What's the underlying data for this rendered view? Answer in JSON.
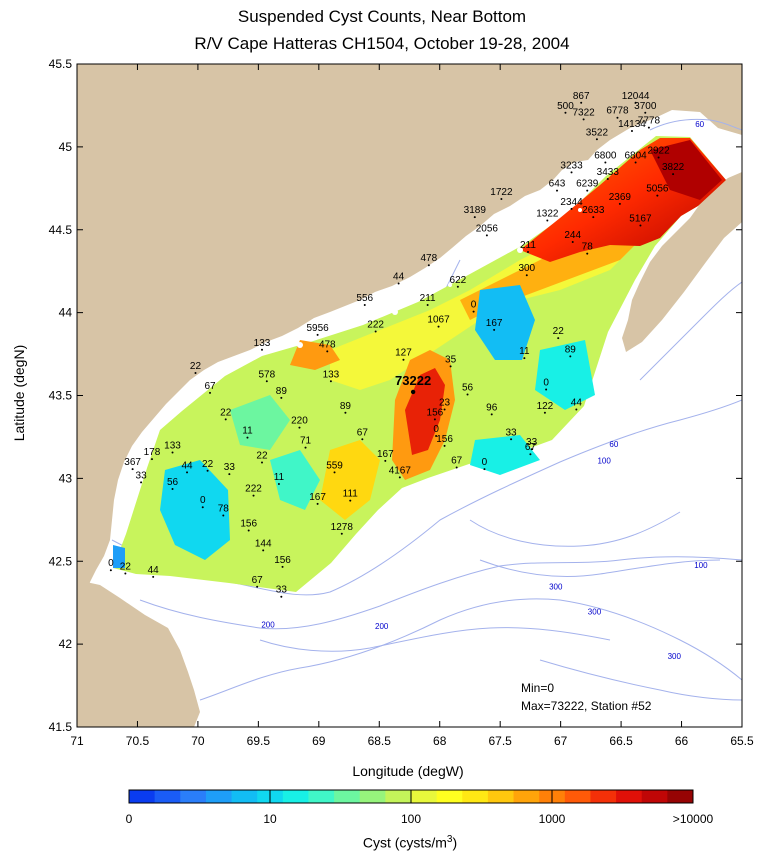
{
  "title_line1": "Suspended Cyst Counts, Near Bottom",
  "title_line2": "R/V Cape Hatteras CH1504, October 19-28, 2004",
  "xlabel": "Longitude (degW)",
  "ylabel": "Latitude (degN)",
  "colorbar": {
    "title": "Cyst (cysts/m",
    "title_sup": "3",
    "title_close": ")",
    "tick_labels": [
      "0",
      "10",
      "100",
      "1000",
      ">10000"
    ],
    "colors": [
      "#0a3cf0",
      "#1a5cf6",
      "#2a7efa",
      "#1e9ef8",
      "#12bdf4",
      "#10d8f0",
      "#18f0e6",
      "#40f6c8",
      "#6cf6a0",
      "#96f47c",
      "#c4f45a",
      "#e8f83c",
      "#ffff20",
      "#ffe814",
      "#ffc80e",
      "#ffa40a",
      "#ff8008",
      "#ff5a08",
      "#f43008",
      "#e01008",
      "#c00606",
      "#960404"
    ]
  },
  "stats": {
    "min": "Min=0",
    "max": "Max=73222, Station #52"
  },
  "colors": {
    "land": "#d7c4a6",
    "water": "#ffffff",
    "contour": "#a4b2ec",
    "depth_label": "#0000cc"
  },
  "chart_data": {
    "type": "contour-map",
    "xlim": [
      71,
      65.5
    ],
    "ylim": [
      41.5,
      45.5
    ],
    "x_ticks": [
      "71",
      "70.5",
      "70",
      "69.5",
      "69",
      "68.5",
      "68",
      "67.5",
      "67",
      "66.5",
      "66",
      "65.5"
    ],
    "y_ticks": [
      "41.5",
      "42",
      "42.5",
      "43",
      "43.5",
      "44",
      "44.5",
      "45",
      "45.5"
    ],
    "depth_contour_labels": [
      {
        "text": "60",
        "lon": 65.85,
        "lat": 45.12
      },
      {
        "text": "60",
        "lon": 66.56,
        "lat": 43.19
      },
      {
        "text": "100",
        "lon": 66.64,
        "lat": 43.09
      },
      {
        "text": "100",
        "lon": 65.84,
        "lat": 42.46
      },
      {
        "text": "300",
        "lon": 67.04,
        "lat": 42.33
      },
      {
        "text": "300",
        "lon": 66.72,
        "lat": 42.18
      },
      {
        "text": "300",
        "lon": 66.06,
        "lat": 41.91
      },
      {
        "text": "200",
        "lon": 69.42,
        "lat": 42.1
      },
      {
        "text": "200",
        "lon": 68.48,
        "lat": 42.09
      }
    ],
    "stations": [
      {
        "lon": 70.72,
        "lat": 42.47,
        "value": "0"
      },
      {
        "lon": 70.6,
        "lat": 42.45,
        "value": "22"
      },
      {
        "lon": 70.37,
        "lat": 42.43,
        "value": "44"
      },
      {
        "lon": 70.54,
        "lat": 43.08,
        "value": "367"
      },
      {
        "lon": 70.47,
        "lat": 43.0,
        "value": "33"
      },
      {
        "lon": 70.38,
        "lat": 43.14,
        "value": "178"
      },
      {
        "lon": 70.21,
        "lat": 43.18,
        "value": "133"
      },
      {
        "lon": 70.21,
        "lat": 42.96,
        "value": "56"
      },
      {
        "lon": 70.09,
        "lat": 43.06,
        "value": "44"
      },
      {
        "lon": 69.96,
        "lat": 42.85,
        "value": "0"
      },
      {
        "lon": 69.92,
        "lat": 43.07,
        "value": "22"
      },
      {
        "lon": 69.79,
        "lat": 42.8,
        "value": "78"
      },
      {
        "lon": 69.74,
        "lat": 43.05,
        "value": "33"
      },
      {
        "lon": 69.77,
        "lat": 43.38,
        "value": "22"
      },
      {
        "lon": 69.9,
        "lat": 43.54,
        "value": "67"
      },
      {
        "lon": 70.02,
        "lat": 43.66,
        "value": "22"
      },
      {
        "lon": 69.59,
        "lat": 43.27,
        "value": "11"
      },
      {
        "lon": 69.47,
        "lat": 43.12,
        "value": "22"
      },
      {
        "lon": 69.54,
        "lat": 42.92,
        "value": "222"
      },
      {
        "lon": 69.58,
        "lat": 42.71,
        "value": "156"
      },
      {
        "lon": 69.46,
        "lat": 42.59,
        "value": "144"
      },
      {
        "lon": 69.3,
        "lat": 42.49,
        "value": "156"
      },
      {
        "lon": 69.51,
        "lat": 42.37,
        "value": "67"
      },
      {
        "lon": 69.31,
        "lat": 42.31,
        "value": "33"
      },
      {
        "lon": 69.33,
        "lat": 42.99,
        "value": "11"
      },
      {
        "lon": 69.47,
        "lat": 43.8,
        "value": "133"
      },
      {
        "lon": 69.43,
        "lat": 43.61,
        "value": "578"
      },
      {
        "lon": 69.31,
        "lat": 43.51,
        "value": "89"
      },
      {
        "lon": 69.16,
        "lat": 43.33,
        "value": "220"
      },
      {
        "lon": 69.11,
        "lat": 43.21,
        "value": "71"
      },
      {
        "lon": 69.01,
        "lat": 43.89,
        "value": "5956"
      },
      {
        "lon": 68.93,
        "lat": 43.79,
        "value": "478"
      },
      {
        "lon": 68.9,
        "lat": 43.61,
        "value": "133"
      },
      {
        "lon": 68.78,
        "lat": 43.42,
        "value": "89"
      },
      {
        "lon": 68.64,
        "lat": 43.26,
        "value": "67"
      },
      {
        "lon": 68.87,
        "lat": 43.06,
        "value": "559"
      },
      {
        "lon": 68.74,
        "lat": 42.89,
        "value": "111"
      },
      {
        "lon": 69.01,
        "lat": 42.87,
        "value": "167"
      },
      {
        "lon": 68.81,
        "lat": 42.69,
        "value": "1278"
      },
      {
        "lon": 68.45,
        "lat": 43.13,
        "value": "167"
      },
      {
        "lon": 68.33,
        "lat": 43.03,
        "value": "4167"
      },
      {
        "lon": 68.22,
        "lat": 43.57,
        "value": "73222",
        "highlight": true
      },
      {
        "lon": 68.3,
        "lat": 43.74,
        "value": "127"
      },
      {
        "lon": 68.53,
        "lat": 43.91,
        "value": "222"
      },
      {
        "lon": 68.62,
        "lat": 44.07,
        "value": "556"
      },
      {
        "lon": 68.34,
        "lat": 44.2,
        "value": "44"
      },
      {
        "lon": 68.1,
        "lat": 44.07,
        "value": "211"
      },
      {
        "lon": 68.01,
        "lat": 43.94,
        "value": "1067"
      },
      {
        "lon": 67.91,
        "lat": 43.7,
        "value": "35"
      },
      {
        "lon": 67.96,
        "lat": 43.44,
        "value": "23"
      },
      {
        "lon": 68.04,
        "lat": 43.38,
        "value": "156"
      },
      {
        "lon": 68.03,
        "lat": 43.28,
        "value": "0"
      },
      {
        "lon": 67.96,
        "lat": 43.22,
        "value": "156"
      },
      {
        "lon": 67.86,
        "lat": 43.09,
        "value": "67"
      },
      {
        "lon": 67.63,
        "lat": 43.08,
        "value": "0"
      },
      {
        "lon": 67.77,
        "lat": 43.53,
        "value": "56"
      },
      {
        "lon": 67.57,
        "lat": 43.41,
        "value": "96"
      },
      {
        "lon": 67.41,
        "lat": 43.26,
        "value": "33"
      },
      {
        "lon": 67.24,
        "lat": 43.2,
        "value": "33"
      },
      {
        "lon": 67.25,
        "lat": 43.17,
        "value": "67"
      },
      {
        "lon": 67.13,
        "lat": 43.42,
        "value": "122"
      },
      {
        "lon": 66.87,
        "lat": 43.44,
        "value": "44"
      },
      {
        "lon": 67.3,
        "lat": 43.75,
        "value": "11"
      },
      {
        "lon": 67.12,
        "lat": 43.56,
        "value": "0"
      },
      {
        "lon": 67.02,
        "lat": 43.87,
        "value": "22"
      },
      {
        "lon": 66.92,
        "lat": 43.76,
        "value": "89"
      },
      {
        "lon": 67.55,
        "lat": 43.92,
        "value": "167"
      },
      {
        "lon": 67.72,
        "lat": 44.03,
        "value": "0"
      },
      {
        "lon": 67.85,
        "lat": 44.18,
        "value": "622"
      },
      {
        "lon": 68.09,
        "lat": 44.31,
        "value": "478"
      },
      {
        "lon": 67.27,
        "lat": 44.39,
        "value": "211"
      },
      {
        "lon": 67.28,
        "lat": 44.25,
        "value": "300"
      },
      {
        "lon": 66.9,
        "lat": 44.45,
        "value": "244"
      },
      {
        "lon": 66.78,
        "lat": 44.38,
        "value": "78"
      },
      {
        "lon": 67.61,
        "lat": 44.49,
        "value": "2056"
      },
      {
        "lon": 67.11,
        "lat": 44.58,
        "value": "1322"
      },
      {
        "lon": 67.71,
        "lat": 44.6,
        "value": "3189"
      },
      {
        "lon": 67.49,
        "lat": 44.71,
        "value": "1722"
      },
      {
        "lon": 67.03,
        "lat": 44.76,
        "value": "643"
      },
      {
        "lon": 66.78,
        "lat": 44.76,
        "value": "6239"
      },
      {
        "lon": 66.91,
        "lat": 44.65,
        "value": "2344"
      },
      {
        "lon": 66.73,
        "lat": 44.6,
        "value": "2633"
      },
      {
        "lon": 66.51,
        "lat": 44.68,
        "value": "2369"
      },
      {
        "lon": 66.34,
        "lat": 44.55,
        "value": "5167"
      },
      {
        "lon": 66.2,
        "lat": 44.73,
        "value": "5056"
      },
      {
        "lon": 66.61,
        "lat": 44.83,
        "value": "3433"
      },
      {
        "lon": 66.91,
        "lat": 44.87,
        "value": "3233"
      },
      {
        "lon": 66.63,
        "lat": 44.93,
        "value": "6800"
      },
      {
        "lon": 66.38,
        "lat": 44.93,
        "value": "6804"
      },
      {
        "lon": 66.07,
        "lat": 44.86,
        "value": "3822"
      },
      {
        "lon": 66.19,
        "lat": 44.96,
        "value": "2922"
      },
      {
        "lon": 66.7,
        "lat": 45.07,
        "value": "3522"
      },
      {
        "lon": 66.41,
        "lat": 45.12,
        "value": "14134"
      },
      {
        "lon": 66.27,
        "lat": 45.14,
        "value": "7778"
      },
      {
        "lon": 66.81,
        "lat": 45.19,
        "value": "7322"
      },
      {
        "lon": 66.53,
        "lat": 45.2,
        "value": "6778"
      },
      {
        "lon": 66.3,
        "lat": 45.23,
        "value": "3700"
      },
      {
        "lon": 66.96,
        "lat": 45.23,
        "value": "500"
      },
      {
        "lon": 66.83,
        "lat": 45.29,
        "value": "867"
      },
      {
        "lon": 66.38,
        "lat": 45.29,
        "value": "12044"
      }
    ]
  }
}
